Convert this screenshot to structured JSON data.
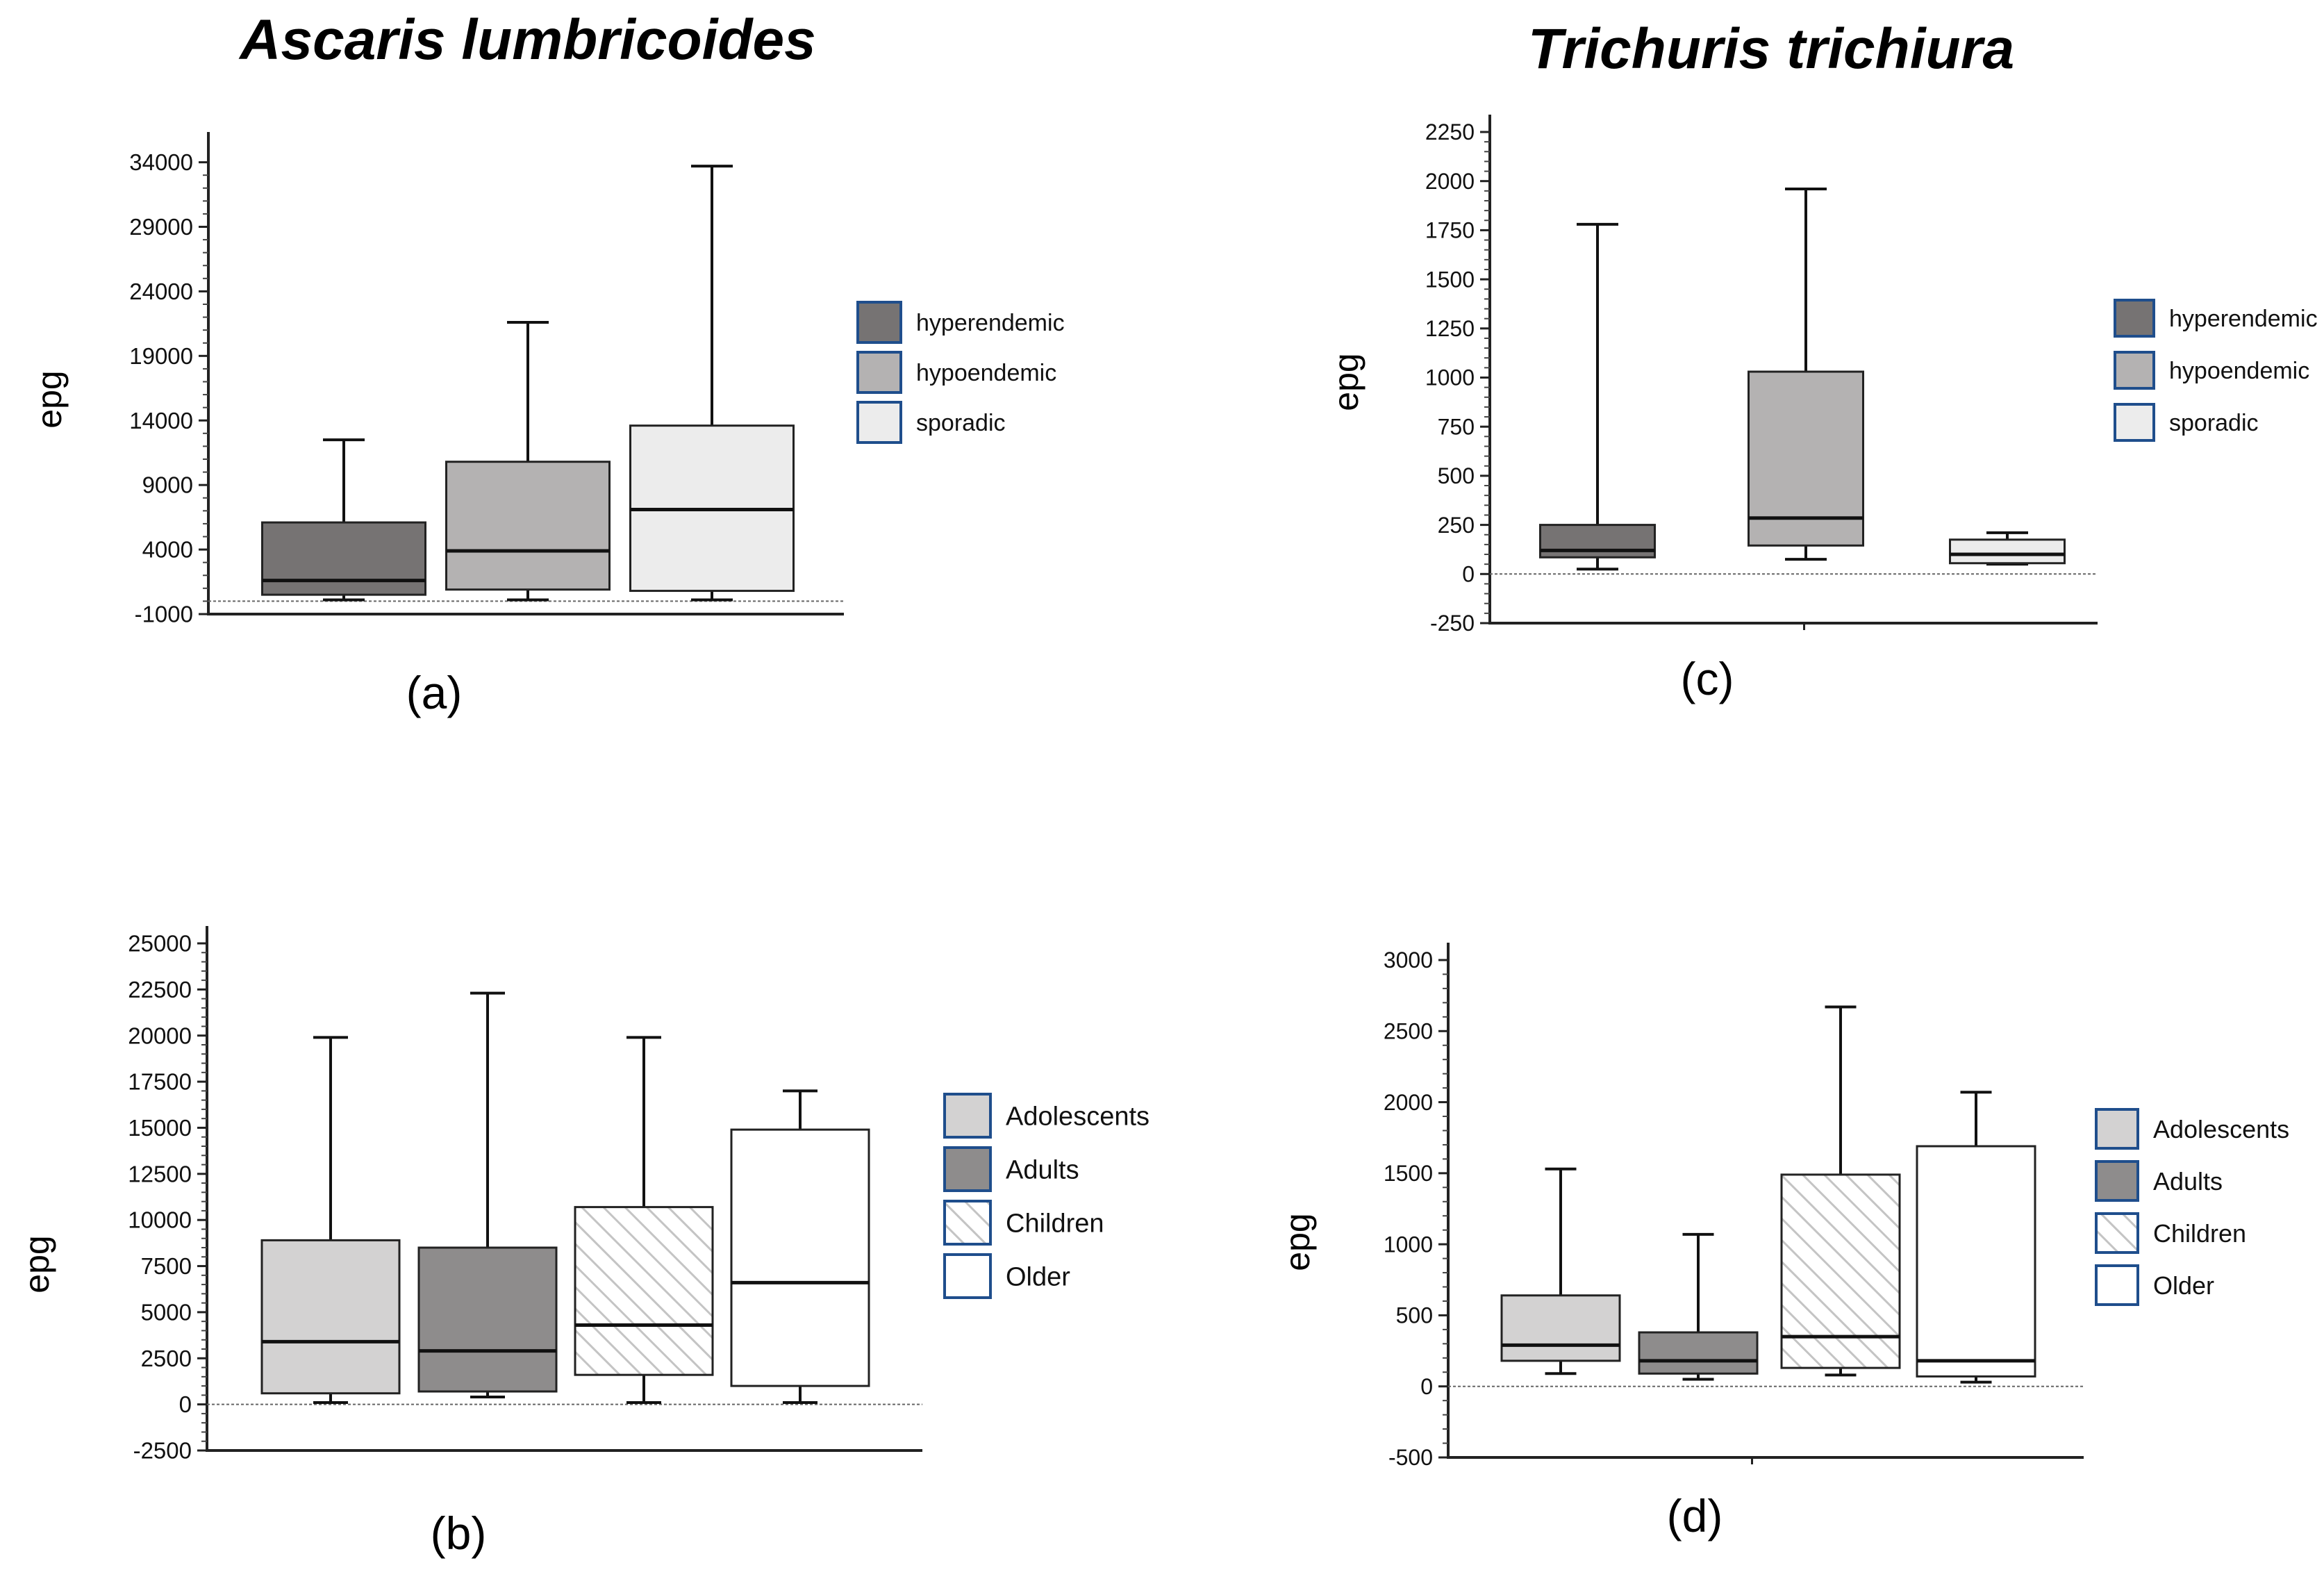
{
  "titles": {
    "left": "Ascaris lumbricoides",
    "right": "Trichuris trichiura"
  },
  "colors": {
    "hyperendemic": "#767373",
    "hypoendemic": "#b4b2b2",
    "sporadic": "#ececec",
    "adolescents": "#d3d2d2",
    "adults": "#8e8c8c",
    "children_hatch": "#c9c9c9",
    "older": "#ffffff",
    "legend_border": "#1f4e8c"
  },
  "chart_data": [
    {
      "id": "a",
      "type": "box",
      "panel_label": "(a)",
      "ylabel": "epg",
      "ylim": [
        -1000,
        35000
      ],
      "yticks": [
        -1000,
        4000,
        9000,
        14000,
        19000,
        24000,
        29000,
        34000
      ],
      "tick_labels": [
        "-1000",
        "4000",
        "9000",
        "14000",
        "19000",
        "24000",
        "29000",
        "34000"
      ],
      "zero_line": 0,
      "series": [
        {
          "name": "hyperendemic",
          "min": 100,
          "q1": 500,
          "median": 1600,
          "q3": 6100,
          "max": 12500
        },
        {
          "name": "hypoendemic",
          "min": 100,
          "q1": 900,
          "median": 3900,
          "q3": 10800,
          "max": 21600
        },
        {
          "name": "sporadic",
          "min": 100,
          "q1": 800,
          "median": 7100,
          "q3": 13600,
          "max": 33700
        }
      ],
      "legend": [
        "hyperendemic",
        "hypoendemic",
        "sporadic"
      ]
    },
    {
      "id": "b",
      "type": "box",
      "panel_label": "(b)",
      "ylabel": "epg",
      "ylim": [
        -2500,
        25000
      ],
      "yticks": [
        -2500,
        0,
        2500,
        5000,
        7500,
        10000,
        12500,
        15000,
        17500,
        20000,
        22500,
        25000
      ],
      "tick_labels": [
        "-2500",
        "0",
        "2500",
        "5000",
        "7500",
        "10000",
        "12500",
        "15000",
        "17500",
        "20000",
        "22500",
        "25000"
      ],
      "zero_line": 0,
      "series": [
        {
          "name": "Adolescents",
          "min": 100,
          "q1": 600,
          "median": 3400,
          "q3": 8900,
          "max": 19900
        },
        {
          "name": "Adults",
          "min": 400,
          "q1": 700,
          "median": 2900,
          "q3": 8500,
          "max": 22300
        },
        {
          "name": "Children",
          "min": 100,
          "q1": 1600,
          "median": 4300,
          "q3": 10700,
          "max": 19900
        },
        {
          "name": "Older",
          "min": 100,
          "q1": 1000,
          "median": 6600,
          "q3": 14900,
          "max": 17000
        }
      ],
      "legend": [
        "Adolescents",
        "Adults",
        "Children",
        "Older"
      ]
    },
    {
      "id": "c",
      "type": "box",
      "panel_label": "(c)",
      "ylabel": "epg",
      "ylim": [
        -250,
        2250
      ],
      "yticks": [
        -250,
        0,
        250,
        500,
        750,
        1000,
        1250,
        1500,
        1750,
        2000,
        2250
      ],
      "tick_labels": [
        "-250",
        "0",
        "250",
        "500",
        "750",
        "1000",
        "1250",
        "1500",
        "1750",
        "2000",
        "2250"
      ],
      "zero_line": 0,
      "series": [
        {
          "name": "hyperendemic",
          "min": 25,
          "q1": 85,
          "median": 120,
          "q3": 250,
          "max": 1780
        },
        {
          "name": "hypoendemic",
          "min": 75,
          "q1": 145,
          "median": 285,
          "q3": 1030,
          "max": 1960
        },
        {
          "name": "sporadic",
          "min": 50,
          "q1": 55,
          "median": 100,
          "q3": 175,
          "max": 210
        }
      ],
      "legend": [
        "hyperendemic",
        "hypoendemic",
        "sporadic"
      ]
    },
    {
      "id": "d",
      "type": "box",
      "panel_label": "(d)",
      "ylabel": "epg",
      "ylim": [
        -500,
        3000
      ],
      "yticks": [
        -500,
        0,
        500,
        1000,
        1500,
        2000,
        2500,
        3000
      ],
      "tick_labels": [
        "-500",
        "0",
        "500",
        "1000",
        "1500",
        "2000",
        "2500",
        "3000"
      ],
      "zero_line": 0,
      "series": [
        {
          "name": "Adolescents",
          "min": 90,
          "q1": 180,
          "median": 290,
          "q3": 640,
          "max": 1530
        },
        {
          "name": "Adults",
          "min": 50,
          "q1": 90,
          "median": 180,
          "q3": 380,
          "max": 1070
        },
        {
          "name": "Children",
          "min": 80,
          "q1": 130,
          "median": 350,
          "q3": 1490,
          "max": 2670
        },
        {
          "name": "Older",
          "min": 30,
          "q1": 70,
          "median": 180,
          "q3": 1690,
          "max": 2070
        }
      ],
      "legend": [
        "Adolescents",
        "Adults",
        "Children",
        "Older"
      ]
    }
  ]
}
